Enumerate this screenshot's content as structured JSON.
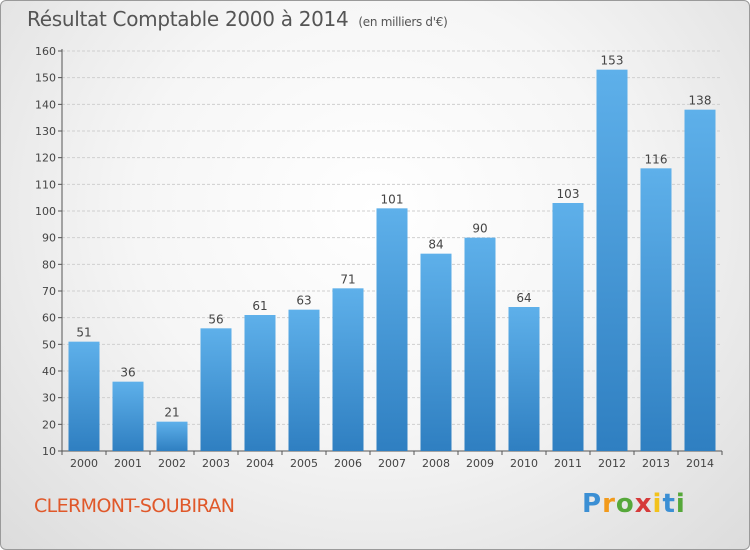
{
  "header": {
    "title": "Résultat Comptable 2000 à 2014",
    "subtitle": "(en milliers d'€)"
  },
  "footer": {
    "city": "CLERMONT-SOUBIRAN",
    "logo": {
      "letters": [
        "P",
        "r",
        "o",
        "x",
        "i",
        "t",
        "i"
      ],
      "colors": [
        "#3b8fd4",
        "#f29a1b",
        "#56a83a",
        "#d63a3a",
        "#f2c21b",
        "#3b8fd4",
        "#56a83a"
      ]
    }
  },
  "colors": {
    "bar_light": "#5eb0ea",
    "bar_dark": "#2f7fc1",
    "grid": "#cfcfcf",
    "axis": "#555555"
  },
  "chart_data": {
    "type": "bar",
    "title": "Résultat Comptable 2000 à 2014",
    "subtitle": "(en milliers d'€)",
    "categories": [
      "2000",
      "2001",
      "2002",
      "2003",
      "2004",
      "2005",
      "2006",
      "2007",
      "2008",
      "2009",
      "2010",
      "2011",
      "2012",
      "2013",
      "2014"
    ],
    "values": [
      51,
      36,
      21,
      56,
      61,
      63,
      71,
      101,
      84,
      90,
      64,
      103,
      153,
      116,
      138
    ],
    "ylim": [
      10,
      160
    ],
    "yticks": [
      10,
      20,
      30,
      40,
      50,
      60,
      70,
      80,
      90,
      100,
      110,
      120,
      130,
      140,
      150,
      160
    ],
    "grid": true,
    "data_labels": true
  }
}
